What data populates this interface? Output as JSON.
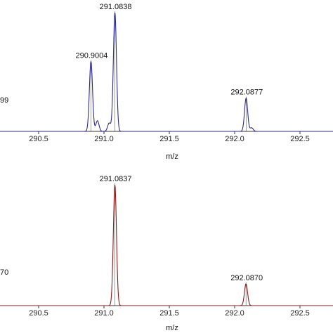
{
  "chart_data": [
    {
      "type": "line",
      "title": "",
      "xlabel": "m/z",
      "ylabel": "",
      "side_label": "99",
      "color": "#2b2b8c",
      "xlim": [
        290.2,
        292.7
      ],
      "xticks": [
        290.5,
        291.0,
        291.5,
        292.0,
        292.5
      ],
      "xtick_labels": [
        "290.5",
        "291.0",
        "291.5",
        "292.0",
        "292.5"
      ],
      "grid": false,
      "peaks": [
        {
          "mz": 290.9004,
          "height": 0.59,
          "label": "290.9004"
        },
        {
          "mz": 290.95,
          "height": 0.09,
          "label": ""
        },
        {
          "mz": 291.0838,
          "height": 1.0,
          "label": "291.0838"
        },
        {
          "mz": 291.04,
          "height": 0.07,
          "label": ""
        },
        {
          "mz": 292.0877,
          "height": 0.28,
          "label": "292.0877"
        },
        {
          "mz": 292.13,
          "height": 0.03,
          "label": ""
        }
      ]
    },
    {
      "type": "line",
      "title": "",
      "xlabel": "m/z",
      "ylabel": "",
      "side_label": "70",
      "color": "#8b1a1a",
      "xlim": [
        290.2,
        292.7
      ],
      "xticks": [
        290.5,
        291.0,
        291.5,
        292.0,
        292.5
      ],
      "xtick_labels": [
        "290.5",
        "291.0",
        "291.5",
        "292.0",
        "292.5"
      ],
      "grid": false,
      "peaks": [
        {
          "mz": 291.0837,
          "height": 1.0,
          "label": "291.0837"
        },
        {
          "mz": 292.087,
          "height": 0.18,
          "label": "292.0870"
        }
      ]
    }
  ]
}
